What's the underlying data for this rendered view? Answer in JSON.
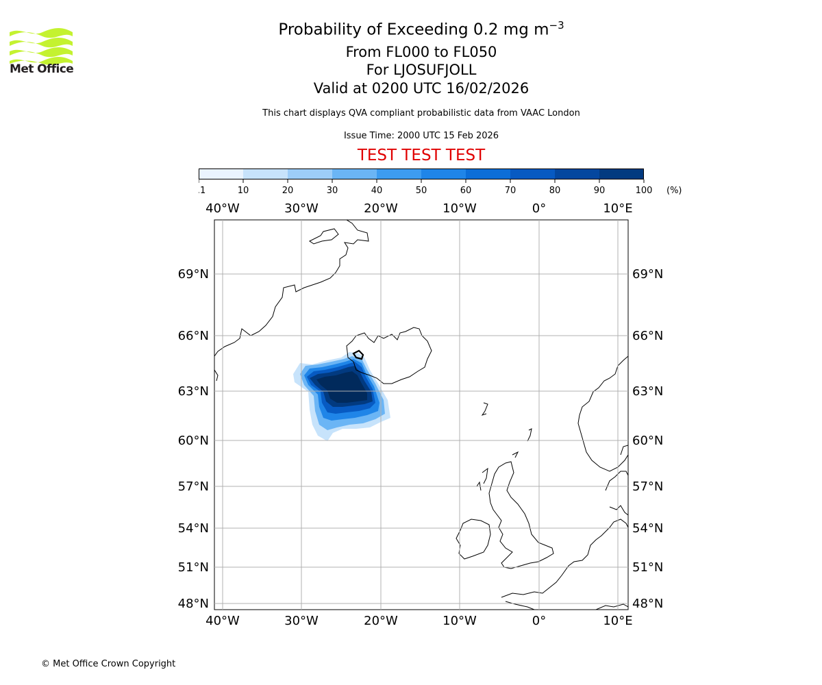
{
  "logo": {
    "text": "Met Office",
    "color": "#c4f230"
  },
  "header": {
    "title_main": "Probability of Exceeding 0.2 mg m",
    "title_sup": "−3",
    "line2": "From FL000 to FL050",
    "line3": "For LJOSUFJOLL",
    "line4": "Valid at 0200 UTC 16/02/2026",
    "note": "This chart displays QVA compliant probabilistic data from VAAC London",
    "issue_time": "Issue Time: 2000 UTC 15 Feb 2026",
    "test_banner": "TEST TEST TEST",
    "test_color": "#e00000"
  },
  "colorbar": {
    "ticks": [
      "0.1",
      "10",
      "20",
      "30",
      "40",
      "50",
      "60",
      "70",
      "80",
      "90",
      "100"
    ],
    "unit": "(%)",
    "colors": [
      "#eaf4fe",
      "#c7e3fb",
      "#9dcdf8",
      "#6bb5f5",
      "#3d9cf0",
      "#1f85e8",
      "#0c6ed8",
      "#075ac2",
      "#04479f",
      "#023a80",
      "#012a5c"
    ]
  },
  "map": {
    "lon_labels": [
      "40°W",
      "30°W",
      "20°W",
      "10°W",
      "0°",
      "10°E"
    ],
    "lat_labels": [
      "69°N",
      "66°N",
      "63°N",
      "60°N",
      "57°N",
      "54°N",
      "51°N",
      "48°N"
    ]
  },
  "footer": {
    "copyright": "© Met Office Crown Copyright"
  }
}
